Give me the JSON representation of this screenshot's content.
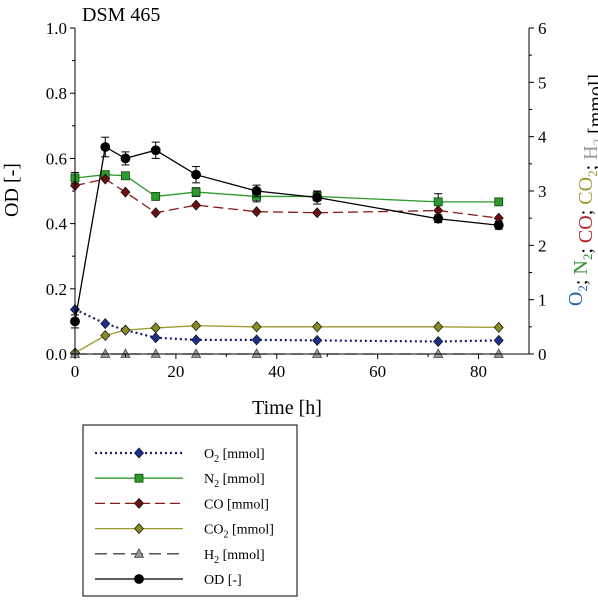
{
  "chart_data": {
    "type": "line",
    "title": "DSM 465",
    "xlabel": "Time [h]",
    "ylabel_left": "OD [-]",
    "ylabel_right_parts": [
      {
        "text": "O",
        "sub": "2",
        "color": "#1f5fa8"
      },
      {
        "text": "; ",
        "sub": "",
        "color": "#000000"
      },
      {
        "text": "N",
        "sub": "2",
        "color": "#2e8b2e"
      },
      {
        "text": "; ",
        "sub": "",
        "color": "#000000"
      },
      {
        "text": "CO",
        "sub": "",
        "color": "#b22222"
      },
      {
        "text": "; ",
        "sub": "",
        "color": "#000000"
      },
      {
        "text": "CO",
        "sub": "2",
        "color": "#9a9a2a"
      },
      {
        "text": "; ",
        "sub": "",
        "color": "#000000"
      },
      {
        "text": "H",
        "sub": "2",
        "color": "#999999"
      },
      {
        "text": " [mmol]",
        "sub": "",
        "color": "#000000"
      }
    ],
    "xlim": [
      0,
      90
    ],
    "ylim_left": [
      0,
      1.0
    ],
    "ylim_right": [
      0,
      6
    ],
    "x_ticks": [
      "0",
      "20",
      "40",
      "60",
      "80"
    ],
    "y_left_ticks": [
      "0.0",
      "0.2",
      "0.4",
      "0.6",
      "0.8",
      "1.0"
    ],
    "y_right_ticks": [
      "0",
      "1",
      "2",
      "3",
      "4",
      "5",
      "6"
    ],
    "legend_position": "below",
    "series": [
      {
        "name": "O2 [mmol]",
        "name_base": "O",
        "name_sub": "2",
        "name_rest": "  [mmol]",
        "axis": "right",
        "color": "#1a1a6e",
        "marker_color": "#1f2f8f",
        "line_style": "dotted",
        "marker": "diamond",
        "x": [
          0,
          6,
          10,
          16,
          24,
          36,
          48,
          72,
          84
        ],
        "y": [
          0.82,
          0.56,
          0.44,
          0.3,
          0.26,
          0.26,
          0.25,
          0.23,
          0.25
        ]
      },
      {
        "name": "N2 [mmol]",
        "name_base": "N",
        "name_sub": "2",
        "name_rest": " [mmol]",
        "axis": "right",
        "color": "#2e9b2e",
        "marker_color": "#2e9b2e",
        "line_style": "solid",
        "marker": "square",
        "x": [
          0,
          6,
          10,
          16,
          24,
          36,
          48,
          72,
          84
        ],
        "y": [
          3.24,
          3.3,
          3.28,
          2.9,
          2.98,
          2.9,
          2.9,
          2.8,
          2.8
        ],
        "err": [
          0.1,
          0.05,
          0.06,
          0.05,
          0.08,
          0.1,
          0.08,
          0.15,
          0.05
        ]
      },
      {
        "name": "CO [mmol]",
        "name_base": "CO",
        "name_sub": "",
        "name_rest": " [mmol]",
        "axis": "right",
        "color": "#8b1a1a",
        "marker_color": "#6a1010",
        "line_style": "dashed",
        "marker": "diamond",
        "x": [
          0,
          6,
          10,
          16,
          24,
          36,
          48,
          72,
          84
        ],
        "y": [
          3.1,
          3.22,
          2.98,
          2.6,
          2.74,
          2.62,
          2.6,
          2.64,
          2.5
        ]
      },
      {
        "name": "CO2 [mmol]",
        "name_base": "CO",
        "name_sub": "2",
        "name_rest": " [mmol]",
        "axis": "right",
        "color": "#9a9a2a",
        "marker_color": "#8a8a22",
        "line_style": "solid",
        "marker": "diamond",
        "x": [
          0,
          6,
          10,
          16,
          24,
          36,
          48,
          72,
          84
        ],
        "y": [
          0.02,
          0.34,
          0.44,
          0.48,
          0.52,
          0.5,
          0.5,
          0.5,
          0.49
        ]
      },
      {
        "name": "H2 [mmol]",
        "name_base": "H",
        "name_sub": "2",
        "name_rest": " [mmol]",
        "axis": "right",
        "color": "#444444",
        "marker_color": "#999999",
        "line_style": "longdash",
        "marker": "triangle",
        "x": [
          0,
          6,
          10,
          16,
          24,
          36,
          48,
          72,
          84
        ],
        "y": [
          0,
          0,
          0,
          0,
          0,
          0,
          0,
          0,
          0
        ]
      },
      {
        "name": "OD [-]",
        "name_base": "OD [-]",
        "name_sub": "",
        "name_rest": "",
        "axis": "left",
        "color": "#000000",
        "marker_color": "#000000",
        "line_style": "solid",
        "marker": "circle",
        "x": [
          0,
          6,
          10,
          16,
          24,
          36,
          48,
          72,
          84
        ],
        "y": [
          0.1,
          0.635,
          0.6,
          0.625,
          0.55,
          0.5,
          0.48,
          0.415,
          0.395
        ],
        "err": [
          0.02,
          0.03,
          0.02,
          0.025,
          0.025,
          0.018,
          0.02,
          0.012,
          0.012
        ]
      }
    ]
  }
}
